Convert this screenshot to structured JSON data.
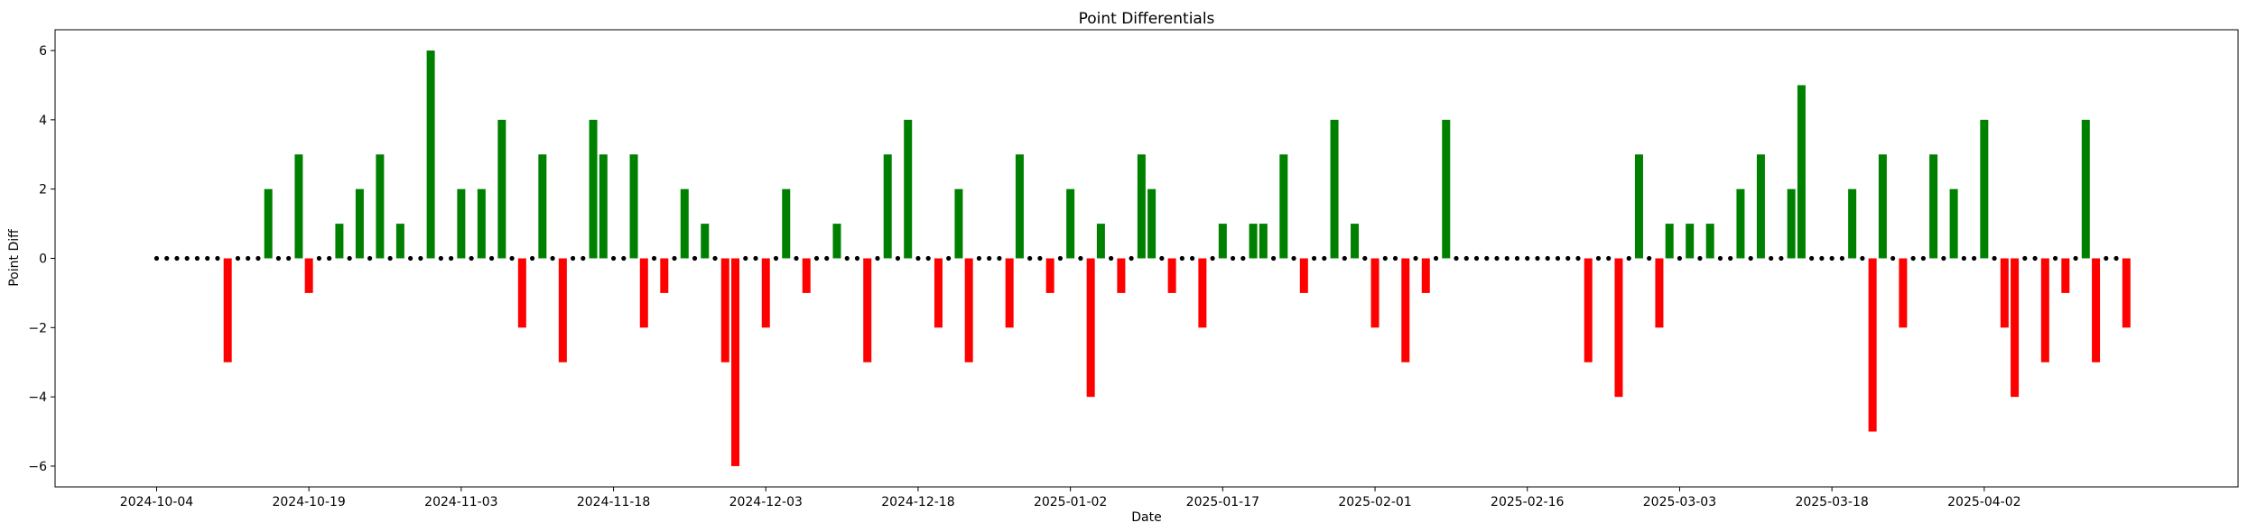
{
  "chart_data": {
    "type": "bar",
    "title": "Point Differentials",
    "xlabel": "Date",
    "ylabel": "Point Diff",
    "x_start": "2024-10-04",
    "xlim": [
      "2024-09-24",
      "2025-04-27"
    ],
    "ylim": [
      -6.6,
      6.6
    ],
    "yticks": [
      -6,
      -4,
      -2,
      0,
      2,
      4,
      6
    ],
    "xticks": [
      "2024-10-04",
      "2024-10-19",
      "2024-11-03",
      "2024-11-18",
      "2024-12-03",
      "2024-12-18",
      "2025-01-02",
      "2025-01-17",
      "2025-02-01",
      "2025-02-16",
      "2025-03-03",
      "2025-03-18",
      "2025-04-02"
    ],
    "grid": false,
    "colors": {
      "positive": "#008000",
      "negative": "#ff0000",
      "zero_marker": "#000000"
    },
    "games": [
      {
        "date": "2024-10-04",
        "value": 0
      },
      {
        "date": "2024-10-05",
        "value": 0
      },
      {
        "date": "2024-10-06",
        "value": 0
      },
      {
        "date": "2024-10-07",
        "value": 0
      },
      {
        "date": "2024-10-08",
        "value": 0
      },
      {
        "date": "2024-10-09",
        "value": 0
      },
      {
        "date": "2024-10-10",
        "value": 0
      },
      {
        "date": "2024-10-11",
        "value": -3
      },
      {
        "date": "2024-10-12",
        "value": 0
      },
      {
        "date": "2024-10-13",
        "value": 0
      },
      {
        "date": "2024-10-14",
        "value": 0
      },
      {
        "date": "2024-10-15",
        "value": 2
      },
      {
        "date": "2024-10-16",
        "value": 0
      },
      {
        "date": "2024-10-17",
        "value": 0
      },
      {
        "date": "2024-10-18",
        "value": 3
      },
      {
        "date": "2024-10-19",
        "value": -1
      },
      {
        "date": "2024-10-20",
        "value": 0
      },
      {
        "date": "2024-10-21",
        "value": 0
      },
      {
        "date": "2024-10-22",
        "value": 1
      },
      {
        "date": "2024-10-23",
        "value": 0
      },
      {
        "date": "2024-10-24",
        "value": 2
      },
      {
        "date": "2024-10-25",
        "value": 0
      },
      {
        "date": "2024-10-26",
        "value": 3
      },
      {
        "date": "2024-10-27",
        "value": 0
      },
      {
        "date": "2024-10-28",
        "value": 1
      },
      {
        "date": "2024-10-29",
        "value": 0
      },
      {
        "date": "2024-10-30",
        "value": 0
      },
      {
        "date": "2024-10-31",
        "value": 6
      },
      {
        "date": "2024-11-01",
        "value": 0
      },
      {
        "date": "2024-11-02",
        "value": 0
      },
      {
        "date": "2024-11-03",
        "value": 2
      },
      {
        "date": "2024-11-04",
        "value": 0
      },
      {
        "date": "2024-11-05",
        "value": 2
      },
      {
        "date": "2024-11-06",
        "value": 0
      },
      {
        "date": "2024-11-07",
        "value": 4
      },
      {
        "date": "2024-11-08",
        "value": 0
      },
      {
        "date": "2024-11-09",
        "value": -2
      },
      {
        "date": "2024-11-10",
        "value": 0
      },
      {
        "date": "2024-11-11",
        "value": 3
      },
      {
        "date": "2024-11-12",
        "value": 0
      },
      {
        "date": "2024-11-13",
        "value": -3
      },
      {
        "date": "2024-11-14",
        "value": 0
      },
      {
        "date": "2024-11-15",
        "value": 0
      },
      {
        "date": "2024-11-16",
        "value": 4
      },
      {
        "date": "2024-11-17",
        "value": 3
      },
      {
        "date": "2024-11-18",
        "value": 0
      },
      {
        "date": "2024-11-19",
        "value": 0
      },
      {
        "date": "2024-11-20",
        "value": 3
      },
      {
        "date": "2024-11-21",
        "value": -2
      },
      {
        "date": "2024-11-22",
        "value": 0
      },
      {
        "date": "2024-11-23",
        "value": -1
      },
      {
        "date": "2024-11-24",
        "value": 0
      },
      {
        "date": "2024-11-25",
        "value": 2
      },
      {
        "date": "2024-11-26",
        "value": 0
      },
      {
        "date": "2024-11-27",
        "value": 1
      },
      {
        "date": "2024-11-28",
        "value": 0
      },
      {
        "date": "2024-11-29",
        "value": -3
      },
      {
        "date": "2024-11-30",
        "value": -6
      },
      {
        "date": "2024-12-01",
        "value": 0
      },
      {
        "date": "2024-12-02",
        "value": 0
      },
      {
        "date": "2024-12-03",
        "value": -2
      },
      {
        "date": "2024-12-04",
        "value": 0
      },
      {
        "date": "2024-12-05",
        "value": 2
      },
      {
        "date": "2024-12-06",
        "value": 0
      },
      {
        "date": "2024-12-07",
        "value": -1
      },
      {
        "date": "2024-12-08",
        "value": 0
      },
      {
        "date": "2024-12-09",
        "value": 0
      },
      {
        "date": "2024-12-10",
        "value": 1
      },
      {
        "date": "2024-12-11",
        "value": 0
      },
      {
        "date": "2024-12-12",
        "value": 0
      },
      {
        "date": "2024-12-13",
        "value": -3
      },
      {
        "date": "2024-12-14",
        "value": 0
      },
      {
        "date": "2024-12-15",
        "value": 3
      },
      {
        "date": "2024-12-16",
        "value": 0
      },
      {
        "date": "2024-12-17",
        "value": 4
      },
      {
        "date": "2024-12-18",
        "value": 0
      },
      {
        "date": "2024-12-19",
        "value": 0
      },
      {
        "date": "2024-12-20",
        "value": -2
      },
      {
        "date": "2024-12-21",
        "value": 0
      },
      {
        "date": "2024-12-22",
        "value": 2
      },
      {
        "date": "2024-12-23",
        "value": -3
      },
      {
        "date": "2024-12-24",
        "value": 0
      },
      {
        "date": "2024-12-25",
        "value": 0
      },
      {
        "date": "2024-12-26",
        "value": 0
      },
      {
        "date": "2024-12-27",
        "value": -2
      },
      {
        "date": "2024-12-28",
        "value": 3
      },
      {
        "date": "2024-12-29",
        "value": 0
      },
      {
        "date": "2024-12-30",
        "value": 0
      },
      {
        "date": "2024-12-31",
        "value": -1
      },
      {
        "date": "2025-01-01",
        "value": 0
      },
      {
        "date": "2025-01-02",
        "value": 2
      },
      {
        "date": "2025-01-03",
        "value": 0
      },
      {
        "date": "2025-01-04",
        "value": -4
      },
      {
        "date": "2025-01-05",
        "value": 1
      },
      {
        "date": "2025-01-06",
        "value": 0
      },
      {
        "date": "2025-01-07",
        "value": -1
      },
      {
        "date": "2025-01-08",
        "value": 0
      },
      {
        "date": "2025-01-09",
        "value": 3
      },
      {
        "date": "2025-01-10",
        "value": 2
      },
      {
        "date": "2025-01-11",
        "value": 0
      },
      {
        "date": "2025-01-12",
        "value": -1
      },
      {
        "date": "2025-01-13",
        "value": 0
      },
      {
        "date": "2025-01-14",
        "value": 0
      },
      {
        "date": "2025-01-15",
        "value": -2
      },
      {
        "date": "2025-01-16",
        "value": 0
      },
      {
        "date": "2025-01-17",
        "value": 1
      },
      {
        "date": "2025-01-18",
        "value": 0
      },
      {
        "date": "2025-01-19",
        "value": 0
      },
      {
        "date": "2025-01-20",
        "value": 1
      },
      {
        "date": "2025-01-21",
        "value": 1
      },
      {
        "date": "2025-01-22",
        "value": 0
      },
      {
        "date": "2025-01-23",
        "value": 3
      },
      {
        "date": "2025-01-24",
        "value": 0
      },
      {
        "date": "2025-01-25",
        "value": -1
      },
      {
        "date": "2025-01-26",
        "value": 0
      },
      {
        "date": "2025-01-27",
        "value": 0
      },
      {
        "date": "2025-01-28",
        "value": 4
      },
      {
        "date": "2025-01-29",
        "value": 0
      },
      {
        "date": "2025-01-30",
        "value": 1
      },
      {
        "date": "2025-01-31",
        "value": 0
      },
      {
        "date": "2025-02-01",
        "value": -2
      },
      {
        "date": "2025-02-02",
        "value": 0
      },
      {
        "date": "2025-02-03",
        "value": 0
      },
      {
        "date": "2025-02-04",
        "value": -3
      },
      {
        "date": "2025-02-05",
        "value": 0
      },
      {
        "date": "2025-02-06",
        "value": -1
      },
      {
        "date": "2025-02-07",
        "value": 0
      },
      {
        "date": "2025-02-08",
        "value": 4
      },
      {
        "date": "2025-02-09",
        "value": 0
      },
      {
        "date": "2025-02-10",
        "value": 0
      },
      {
        "date": "2025-02-11",
        "value": 0
      },
      {
        "date": "2025-02-12",
        "value": 0
      },
      {
        "date": "2025-02-13",
        "value": 0
      },
      {
        "date": "2025-02-14",
        "value": 0
      },
      {
        "date": "2025-02-15",
        "value": 0
      },
      {
        "date": "2025-02-16",
        "value": 0
      },
      {
        "date": "2025-02-17",
        "value": 0
      },
      {
        "date": "2025-02-18",
        "value": 0
      },
      {
        "date": "2025-02-19",
        "value": 0
      },
      {
        "date": "2025-02-20",
        "value": 0
      },
      {
        "date": "2025-02-21",
        "value": 0
      },
      {
        "date": "2025-02-22",
        "value": -3
      },
      {
        "date": "2025-02-23",
        "value": 0
      },
      {
        "date": "2025-02-24",
        "value": 0
      },
      {
        "date": "2025-02-25",
        "value": -4
      },
      {
        "date": "2025-02-26",
        "value": 0
      },
      {
        "date": "2025-02-27",
        "value": 3
      },
      {
        "date": "2025-02-28",
        "value": 0
      },
      {
        "date": "2025-03-01",
        "value": -2
      },
      {
        "date": "2025-03-02",
        "value": 1
      },
      {
        "date": "2025-03-03",
        "value": 0
      },
      {
        "date": "2025-03-04",
        "value": 1
      },
      {
        "date": "2025-03-05",
        "value": 0
      },
      {
        "date": "2025-03-06",
        "value": 1
      },
      {
        "date": "2025-03-07",
        "value": 0
      },
      {
        "date": "2025-03-08",
        "value": 0
      },
      {
        "date": "2025-03-09",
        "value": 2
      },
      {
        "date": "2025-03-10",
        "value": 0
      },
      {
        "date": "2025-03-11",
        "value": 3
      },
      {
        "date": "2025-03-12",
        "value": 0
      },
      {
        "date": "2025-03-13",
        "value": 0
      },
      {
        "date": "2025-03-14",
        "value": 2
      },
      {
        "date": "2025-03-15",
        "value": 5
      },
      {
        "date": "2025-03-16",
        "value": 0
      },
      {
        "date": "2025-03-17",
        "value": 0
      },
      {
        "date": "2025-03-18",
        "value": 0
      },
      {
        "date": "2025-03-19",
        "value": 0
      },
      {
        "date": "2025-03-20",
        "value": 2
      },
      {
        "date": "2025-03-21",
        "value": 0
      },
      {
        "date": "2025-03-22",
        "value": -5
      },
      {
        "date": "2025-03-23",
        "value": 3
      },
      {
        "date": "2025-03-24",
        "value": 0
      },
      {
        "date": "2025-03-25",
        "value": -2
      },
      {
        "date": "2025-03-26",
        "value": 0
      },
      {
        "date": "2025-03-27",
        "value": 0
      },
      {
        "date": "2025-03-28",
        "value": 3
      },
      {
        "date": "2025-03-29",
        "value": 0
      },
      {
        "date": "2025-03-30",
        "value": 2
      },
      {
        "date": "2025-03-31",
        "value": 0
      },
      {
        "date": "2025-04-01",
        "value": 0
      },
      {
        "date": "2025-04-02",
        "value": 4
      },
      {
        "date": "2025-04-03",
        "value": 0
      },
      {
        "date": "2025-04-04",
        "value": -2
      },
      {
        "date": "2025-04-05",
        "value": -4
      },
      {
        "date": "2025-04-06",
        "value": 0
      },
      {
        "date": "2025-04-07",
        "value": 0
      },
      {
        "date": "2025-04-08",
        "value": -3
      },
      {
        "date": "2025-04-09",
        "value": 0
      },
      {
        "date": "2025-04-10",
        "value": -1
      },
      {
        "date": "2025-04-11",
        "value": 0
      },
      {
        "date": "2025-04-12",
        "value": 4
      },
      {
        "date": "2025-04-13",
        "value": -3
      },
      {
        "date": "2025-04-14",
        "value": 0
      },
      {
        "date": "2025-04-15",
        "value": 0
      },
      {
        "date": "2025-04-16",
        "value": -2
      }
    ]
  }
}
